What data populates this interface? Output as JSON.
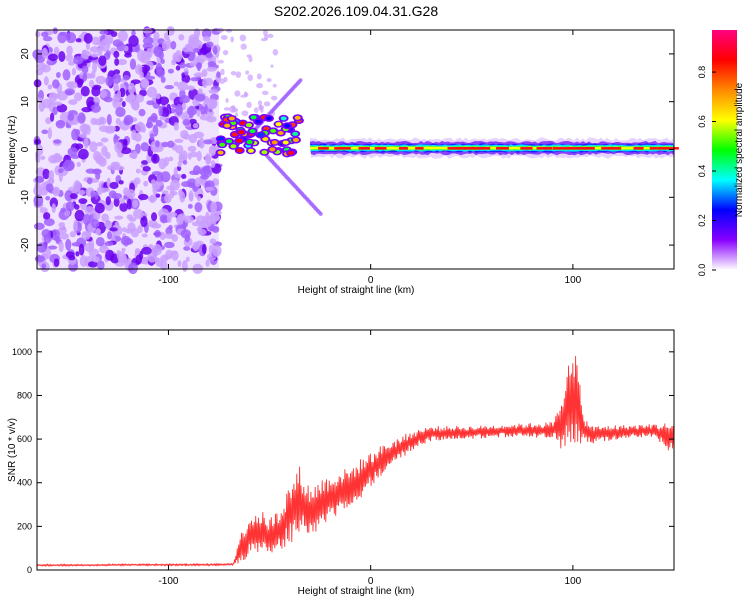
{
  "chart_data": [
    {
      "type": "heatmap",
      "title": "S202.2026.109.04.31.G28",
      "xlabel": "Height of straight line (km)",
      "ylabel": "Frequency (Hz)",
      "xlim": [
        -165,
        150
      ],
      "ylim": [
        -25,
        25
      ],
      "x_ticks": [
        -100,
        0,
        100
      ],
      "y_ticks": [
        -20,
        -10,
        0,
        10,
        20
      ],
      "colorbar": {
        "label": "Normalized spectral amplitude",
        "range": [
          0,
          0.97
        ],
        "ticks": [
          0.0,
          0.2,
          0.4,
          0.6,
          0.8
        ],
        "tick_labels": [
          "0.0",
          "0.2",
          "0.4",
          "0.6",
          "0.8"
        ],
        "colormap": [
          "#ffffff",
          "#8800ff",
          "#0000ff",
          "#00ffff",
          "#00ff00",
          "#ffff00",
          "#ff8800",
          "#ff0000",
          "#ff0080"
        ]
      },
      "regions": [
        {
          "name": "noise",
          "x_range": [
            -165,
            -75
          ],
          "freq_range": [
            -25,
            25
          ],
          "amplitude": [
            0.0,
            0.1
          ]
        },
        {
          "name": "onset",
          "x_range": [
            -75,
            -35
          ],
          "freq_center_hz": 3,
          "amplitude": [
            0.2,
            0.9
          ]
        },
        {
          "name": "tone",
          "x_range": [
            -30,
            150
          ],
          "freq_center_hz": 0.3,
          "amplitude": [
            0.5,
            0.97
          ]
        }
      ]
    },
    {
      "type": "line",
      "xlabel": "Height of straight line (km)",
      "ylabel": "SNR (10 * v/v)",
      "xlim": [
        -165,
        150
      ],
      "ylim": [
        0,
        1100
      ],
      "x_ticks": [
        -100,
        0,
        100
      ],
      "y_ticks": [
        0,
        200,
        400,
        600,
        800,
        1000
      ],
      "series": [
        {
          "name": "SNR",
          "color": "#ff3333",
          "x": [
            -165,
            -140,
            -120,
            -100,
            -80,
            -68,
            -65,
            -60,
            -55,
            -50,
            -45,
            -40,
            -35,
            -30,
            -25,
            -20,
            -15,
            -10,
            -5,
            0,
            5,
            10,
            15,
            20,
            25,
            30,
            40,
            50,
            60,
            70,
            80,
            90,
            95,
            98,
            100,
            102,
            105,
            110,
            120,
            130,
            140,
            150
          ],
          "values": [
            22,
            22,
            24,
            24,
            24,
            26,
            90,
            160,
            170,
            150,
            180,
            260,
            320,
            260,
            300,
            330,
            360,
            380,
            420,
            460,
            500,
            530,
            560,
            590,
            610,
            625,
            630,
            630,
            635,
            640,
            640,
            640,
            660,
            800,
            820,
            760,
            650,
            620,
            630,
            635,
            640,
            600
          ],
          "jitter": [
            4,
            4,
            4,
            4,
            4,
            5,
            60,
            100,
            110,
            90,
            110,
            140,
            160,
            120,
            120,
            110,
            100,
            90,
            90,
            80,
            70,
            65,
            55,
            45,
            40,
            35,
            30,
            30,
            30,
            30,
            35,
            40,
            120,
            250,
            260,
            220,
            60,
            40,
            35,
            30,
            30,
            80
          ]
        }
      ]
    }
  ]
}
